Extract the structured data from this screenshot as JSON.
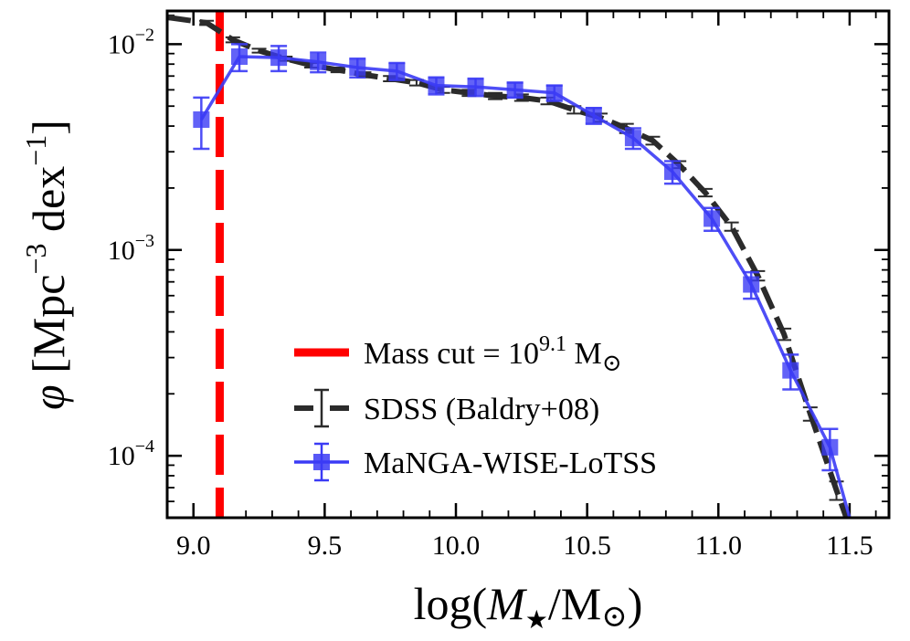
{
  "chart_data": {
    "type": "line",
    "yscale": "log",
    "xlim": [
      8.9,
      11.65
    ],
    "ylim": [
      5e-05,
      0.0145
    ],
    "xticks": [
      "9.0",
      "9.5",
      "10.0",
      "10.5",
      "11.0",
      "11.5"
    ],
    "xtick_values": [
      9.0,
      9.5,
      10.0,
      10.5,
      11.0,
      11.5
    ],
    "yticks": [
      {
        "value": 0.01,
        "base": "10",
        "exp": "−2"
      },
      {
        "value": 0.001,
        "base": "10",
        "exp": "−3"
      },
      {
        "value": 0.0001,
        "base": "10",
        "exp": "−4"
      }
    ],
    "xlabel": {
      "pre": "log(",
      "var": "M",
      "sub": "★",
      "post": "/M",
      "sun": "⊙",
      "close": ")"
    },
    "ylabel": {
      "phi": "φ",
      "a": " [Mpc",
      "sup1": "−3",
      "b": " dex",
      "sup2": "−1",
      "c": "]"
    },
    "mass_cut": {
      "x": 9.1,
      "color": "#ff0000"
    },
    "legend": {
      "position": "lower-left-center",
      "items": [
        {
          "key": "mass_cut",
          "text": "Mass cut = 10",
          "sup": "9.1",
          "suffix": " M",
          "sun": "⊙"
        },
        {
          "key": "sdss",
          "text": "SDSS (Baldry+08)"
        },
        {
          "key": "manga",
          "text": "MaNGA-WISE-LoTSS"
        }
      ]
    },
    "series": [
      {
        "key": "sdss",
        "color": "#2b2b2b",
        "style": "dashed",
        "x": [
          8.9,
          9.05,
          9.15,
          9.25,
          9.35,
          9.45,
          9.55,
          9.65,
          9.75,
          9.85,
          9.95,
          10.05,
          10.15,
          10.25,
          10.35,
          10.45,
          10.55,
          10.65,
          10.75,
          10.85,
          10.95,
          11.05,
          11.15,
          11.25,
          11.35,
          11.45,
          11.55
        ],
        "y": [
          0.0135,
          0.0127,
          0.0105,
          0.0093,
          0.0085,
          0.0079,
          0.0075,
          0.0071,
          0.0068,
          0.0065,
          0.006,
          0.0058,
          0.0056,
          0.0055,
          0.0053,
          0.0048,
          0.0044,
          0.0039,
          0.0034,
          0.0026,
          0.0019,
          0.0013,
          0.00075,
          0.00039,
          0.00016,
          6.8e-05,
          3e-05
        ],
        "err": [
          0.0003,
          0.0003,
          0.0003,
          0.0002,
          0.0002,
          0.0002,
          0.0002,
          0.0002,
          0.0002,
          0.0002,
          0.0002,
          0.0002,
          0.0002,
          0.0002,
          0.0002,
          0.0002,
          0.0002,
          0.0002,
          0.00015,
          0.0001,
          8e-05,
          6e-05,
          4e-05,
          2.5e-05,
          1.2e-05,
          7e-06,
          4e-06
        ]
      },
      {
        "key": "manga",
        "color": "#3b3bf5",
        "style": "solid",
        "marker": "square",
        "x": [
          9.03,
          9.175,
          9.325,
          9.475,
          9.625,
          9.775,
          9.925,
          10.075,
          10.225,
          10.375,
          10.525,
          10.675,
          10.825,
          10.975,
          11.125,
          11.275,
          11.425,
          11.5
        ],
        "y": [
          0.0043,
          0.0087,
          0.0086,
          0.0082,
          0.0077,
          0.0074,
          0.0063,
          0.0062,
          0.006,
          0.0058,
          0.0045,
          0.0035,
          0.0024,
          0.00142,
          0.00068,
          0.00026,
          0.00011,
          5e-05
        ],
        "err_lo": [
          0.0012,
          0.0013,
          0.0012,
          0.0009,
          0.0008,
          0.0007,
          0.0006,
          0.0006,
          0.0005,
          0.0005,
          0.0004,
          0.0004,
          0.0003,
          0.00018,
          0.0001,
          5e-05,
          2.5e-05,
          0
        ],
        "err_hi": [
          0.0012,
          0.0013,
          0.0012,
          0.0009,
          0.0008,
          0.0007,
          0.0006,
          0.0006,
          0.0005,
          0.0005,
          0.0004,
          0.0004,
          0.0003,
          0.00018,
          0.0001,
          5e-05,
          2.5e-05,
          0
        ],
        "show_marker": [
          true,
          true,
          true,
          true,
          true,
          true,
          true,
          true,
          true,
          true,
          true,
          true,
          true,
          true,
          true,
          true,
          true,
          false
        ]
      }
    ]
  }
}
